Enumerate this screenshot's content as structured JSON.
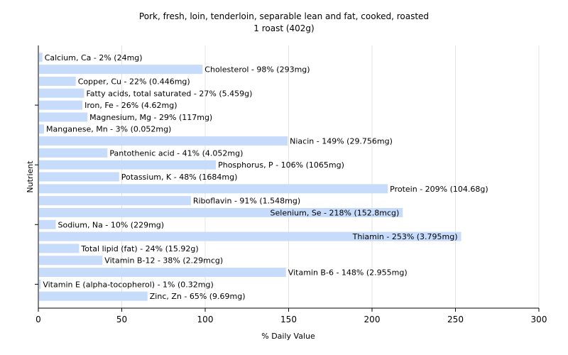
{
  "chart_data": {
    "type": "bar",
    "orientation": "horizontal",
    "title": "Pork, fresh, loin, tenderloin, separable lean and fat, cooked, roasted",
    "subtitle": "1 roast (402g)",
    "xlabel": "% Daily Value",
    "ylabel": "Nutrient",
    "xlim": [
      0,
      300
    ],
    "xticks": [
      0,
      50,
      100,
      150,
      200,
      250,
      300
    ],
    "grid": true,
    "bar_color": "#c6dcfa",
    "categories": [
      "Calcium, Ca",
      "Cholesterol",
      "Copper, Cu",
      "Fatty acids, total saturated",
      "Iron, Fe",
      "Magnesium, Mg",
      "Manganese, Mn",
      "Niacin",
      "Pantothenic acid",
      "Phosphorus, P",
      "Potassium, K",
      "Protein",
      "Riboflavin",
      "Selenium, Se",
      "Sodium, Na",
      "Thiamin",
      "Total lipid (fat)",
      "Vitamin B-12",
      "Vitamin B-6",
      "Vitamin E (alpha-tocopherol)",
      "Zinc, Zn"
    ],
    "values": [
      2,
      98,
      22,
      27,
      26,
      29,
      3,
      149,
      41,
      106,
      48,
      209,
      91,
      218,
      10,
      253,
      24,
      38,
      148,
      1,
      65
    ],
    "labels": [
      "Calcium, Ca - 2% (24mg)",
      "Cholesterol - 98% (293mg)",
      "Copper, Cu - 22% (0.446mg)",
      "Fatty acids, total saturated - 27% (5.459g)",
      "Iron, Fe - 26% (4.62mg)",
      "Magnesium, Mg - 29% (117mg)",
      "Manganese, Mn - 3% (0.052mg)",
      "Niacin - 149% (29.756mg)",
      "Pantothenic acid - 41% (4.052mg)",
      "Phosphorus, P - 106% (1065mg)",
      "Potassium, K - 48% (1684mg)",
      "Protein - 209% (104.68g)",
      "Riboflavin - 91% (1.548mg)",
      "Selenium, Se - 218% (152.8mcg)",
      "Sodium, Na - 10% (229mg)",
      "Thiamin - 253% (3.795mg)",
      "Total lipid (fat) - 24% (15.92g)",
      "Vitamin B-12 - 38% (2.29mcg)",
      "Vitamin B-6 - 148% (2.955mg)",
      "Vitamin E (alpha-tocopherol) - 1% (0.32mg)",
      "Zinc, Zn - 65% (9.69mg)"
    ]
  }
}
